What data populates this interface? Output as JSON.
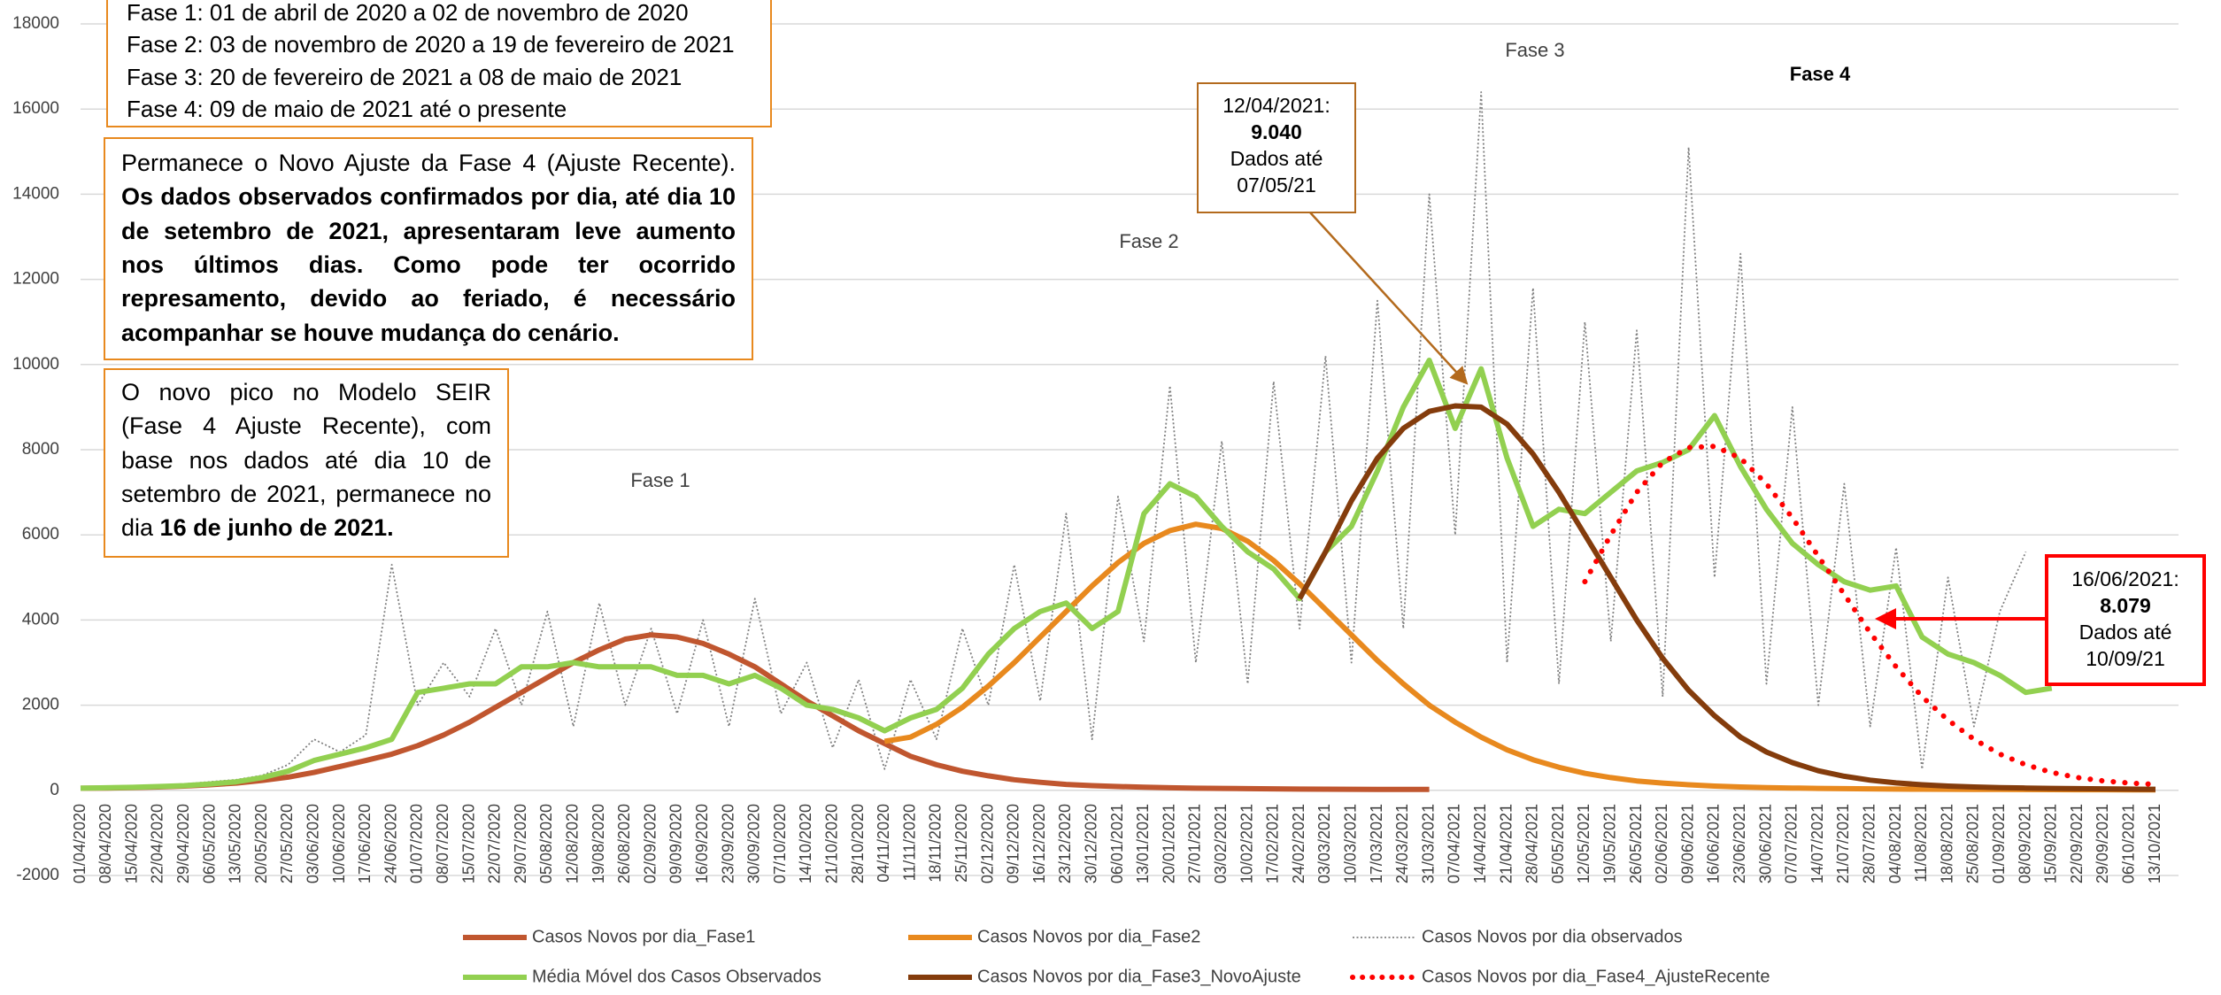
{
  "chart_data": {
    "type": "line",
    "categories": [
      "01/04/2020",
      "08/04/2020",
      "15/04/2020",
      "22/04/2020",
      "29/04/2020",
      "06/05/2020",
      "13/05/2020",
      "20/05/2020",
      "27/05/2020",
      "03/06/2020",
      "10/06/2020",
      "17/06/2020",
      "24/06/2020",
      "01/07/2020",
      "08/07/2020",
      "15/07/2020",
      "22/07/2020",
      "29/07/2020",
      "05/08/2020",
      "12/08/2020",
      "19/08/2020",
      "26/08/2020",
      "02/09/2020",
      "09/09/2020",
      "16/09/2020",
      "23/09/2020",
      "30/09/2020",
      "07/10/2020",
      "14/10/2020",
      "21/10/2020",
      "28/10/2020",
      "04/11/2020",
      "11/11/2020",
      "18/11/2020",
      "25/11/2020",
      "02/12/2020",
      "09/12/2020",
      "16/12/2020",
      "23/12/2020",
      "30/12/2020",
      "06/01/2021",
      "13/01/2021",
      "20/01/2021",
      "27/01/2021",
      "03/02/2021",
      "10/02/2021",
      "17/02/2021",
      "24/02/2021",
      "03/03/2021",
      "10/03/2021",
      "17/03/2021",
      "24/03/2021",
      "31/03/2021",
      "07/04/2021",
      "14/04/2021",
      "21/04/2021",
      "28/04/2021",
      "05/05/2021",
      "12/05/2021",
      "19/05/2021",
      "26/05/2021",
      "02/06/2021",
      "09/06/2021",
      "16/06/2021",
      "23/06/2021",
      "30/06/2021",
      "07/07/2021",
      "14/07/2021",
      "21/07/2021",
      "28/07/2021",
      "04/08/2021",
      "11/08/2021",
      "18/08/2021",
      "25/08/2021",
      "01/09/2021",
      "08/09/2021",
      "15/09/2021",
      "22/09/2021",
      "29/09/2021",
      "06/10/2021",
      "13/10/2021"
    ],
    "series": [
      {
        "name": "Casos Novos por dia_Fase1",
        "color": "#c0562f",
        "style": "solid",
        "values": [
          50,
          55,
          65,
          80,
          100,
          130,
          170,
          230,
          310,
          420,
          560,
          700,
          850,
          1050,
          1300,
          1600,
          1950,
          2300,
          2650,
          3000,
          3300,
          3550,
          3650,
          3600,
          3450,
          3200,
          2900,
          2500,
          2100,
          1750,
          1400,
          1100,
          800,
          600,
          450,
          340,
          250,
          190,
          140,
          110,
          90,
          75,
          60,
          50,
          45,
          40,
          35,
          30,
          28,
          25,
          22,
          20,
          20,
          null,
          null,
          null,
          null,
          null,
          null,
          null,
          null,
          null,
          null,
          null,
          null,
          null,
          null,
          null,
          null,
          null,
          null,
          null,
          null,
          null,
          null,
          null,
          null,
          null,
          null,
          null,
          null
        ]
      },
      {
        "name": "Casos Novos por dia_Fase2",
        "color": "#e8891e",
        "style": "solid",
        "values": [
          null,
          null,
          null,
          null,
          null,
          null,
          null,
          null,
          null,
          null,
          null,
          null,
          null,
          null,
          null,
          null,
          null,
          null,
          null,
          null,
          null,
          null,
          null,
          null,
          null,
          null,
          null,
          null,
          null,
          null,
          null,
          1150,
          1250,
          1550,
          1950,
          2450,
          3000,
          3600,
          4200,
          4800,
          5350,
          5800,
          6100,
          6250,
          6150,
          5850,
          5400,
          4850,
          4250,
          3650,
          3050,
          2500,
          2000,
          1600,
          1250,
          950,
          720,
          540,
          400,
          300,
          220,
          170,
          130,
          100,
          80,
          65,
          55,
          45,
          40,
          35,
          30,
          28,
          25,
          22,
          20,
          18,
          16,
          15,
          14,
          12,
          10
        ]
      },
      {
        "name": "Casos Novos por dia observados",
        "color": "#808080",
        "style": "dotted",
        "values": [
          30,
          60,
          90,
          120,
          150,
          200,
          250,
          350,
          600,
          1200,
          900,
          1300,
          5300,
          2000,
          3000,
          2200,
          3800,
          2000,
          4200,
          1500,
          4400,
          2000,
          3800,
          1800,
          4000,
          1500,
          4500,
          1800,
          3000,
          1000,
          2600,
          500,
          2600,
          1200,
          3800,
          2000,
          5300,
          2100,
          6500,
          1200,
          6900,
          3500,
          9500,
          3000,
          8200,
          2500,
          9600,
          3800,
          10200,
          3000,
          11500,
          3800,
          14000,
          6000,
          16400,
          3000,
          11800,
          2500,
          11000,
          3500,
          10800,
          2200,
          15100,
          5000,
          12600,
          2500,
          9000,
          2000,
          7200,
          1500,
          5700,
          500,
          5000,
          1500,
          4200,
          5600,
          null,
          null,
          null,
          null,
          null
        ]
      },
      {
        "name": "Média Móvel dos Casos Observados",
        "color": "#92d050",
        "style": "solid",
        "values": [
          50,
          60,
          70,
          90,
          110,
          150,
          200,
          300,
          450,
          700,
          850,
          1000,
          1200,
          2300,
          2400,
          2500,
          2500,
          2900,
          2900,
          3000,
          2900,
          2900,
          2900,
          2700,
          2700,
          2500,
          2700,
          2400,
          2000,
          1900,
          1700,
          1400,
          1700,
          1900,
          2400,
          3200,
          3800,
          4200,
          4400,
          3800,
          4200,
          6500,
          7200,
          6900,
          6200,
          5600,
          5200,
          4500,
          5600,
          6200,
          7500,
          9000,
          10100,
          8500,
          9900,
          7800,
          6200,
          6600,
          6500,
          7000,
          7500,
          7700,
          8000,
          8800,
          7600,
          6600,
          5800,
          5300,
          4900,
          4700,
          4800,
          3600,
          3200,
          3000,
          2700,
          2300,
          2400,
          null,
          null,
          null,
          null
        ]
      },
      {
        "name": "Casos Novos por dia_Fase3_NovoAjuste",
        "color": "#843c0c",
        "style": "solid",
        "values": [
          null,
          null,
          null,
          null,
          null,
          null,
          null,
          null,
          null,
          null,
          null,
          null,
          null,
          null,
          null,
          null,
          null,
          null,
          null,
          null,
          null,
          null,
          null,
          null,
          null,
          null,
          null,
          null,
          null,
          null,
          null,
          null,
          null,
          null,
          null,
          null,
          null,
          null,
          null,
          null,
          null,
          null,
          null,
          null,
          null,
          null,
          null,
          4500,
          5600,
          6800,
          7800,
          8500,
          8900,
          9030,
          9000,
          8600,
          7900,
          7000,
          6000,
          5000,
          4000,
          3100,
          2350,
          1750,
          1250,
          900,
          650,
          460,
          330,
          240,
          175,
          130,
          100,
          80,
          65,
          55,
          45,
          40,
          35,
          30,
          25
        ]
      },
      {
        "name": "Casos Novos por dia_Fase4_AjusteRecente",
        "color": "#ff0000",
        "style": "dots",
        "values": [
          null,
          null,
          null,
          null,
          null,
          null,
          null,
          null,
          null,
          null,
          null,
          null,
          null,
          null,
          null,
          null,
          null,
          null,
          null,
          null,
          null,
          null,
          null,
          null,
          null,
          null,
          null,
          null,
          null,
          null,
          null,
          null,
          null,
          null,
          null,
          null,
          null,
          null,
          null,
          null,
          null,
          null,
          null,
          null,
          null,
          null,
          null,
          null,
          null,
          null,
          null,
          null,
          null,
          null,
          null,
          null,
          null,
          null,
          4900,
          6000,
          7000,
          7700,
          8050,
          8079,
          7800,
          7200,
          6400,
          5500,
          4600,
          3700,
          2900,
          2200,
          1650,
          1200,
          850,
          600,
          420,
          300,
          220,
          170,
          140
        ]
      }
    ],
    "ylim": [
      -2000,
      18000
    ],
    "yticks": [
      -2000,
      0,
      2000,
      4000,
      6000,
      8000,
      10000,
      12000,
      14000,
      16000,
      18000
    ],
    "grid": true,
    "legend": "bottom",
    "phase_labels": [
      "Fase 1",
      "Fase 2",
      "Fase 3",
      "Fase 4"
    ],
    "phase_dates": [
      "Fase 1: 01 de abril de 2020 a 02 de novembro de 2020",
      "Fase 2: 03 de novembro de 2020 a 19 de fevereiro de 2021",
      "Fase 3: 20 de fevereiro de 2021 a 08 de maio de 2021",
      "Fase 4: 09 de maio de 2021 até o presente"
    ],
    "note_box": {
      "normal": "Permanece o Novo Ajuste da Fase 4 (Ajuste Recente).",
      "bold": "Os dados observados confirmados por dia, até dia 10 de setembro de 2021, apresentaram leve aumento nos últimos dias. Como pode ter ocorrido represamento, devido ao feriado, é necessário acompanhar se houve mudança do cenário."
    },
    "peak_box": {
      "normal": "O novo pico no Modelo SEIR (Fase 4 Ajuste Recente), com base nos dados até dia 10 de setembro de 2021, permanece no dia",
      "bold": "16 de junho de 2021."
    },
    "callouts": [
      {
        "lines": [
          "12/04/2021:",
          "9.040",
          "Dados até",
          "07/05/21"
        ]
      },
      {
        "lines": [
          "16/06/2021:",
          "8.079",
          "Dados até",
          "10/09/21"
        ]
      }
    ]
  }
}
